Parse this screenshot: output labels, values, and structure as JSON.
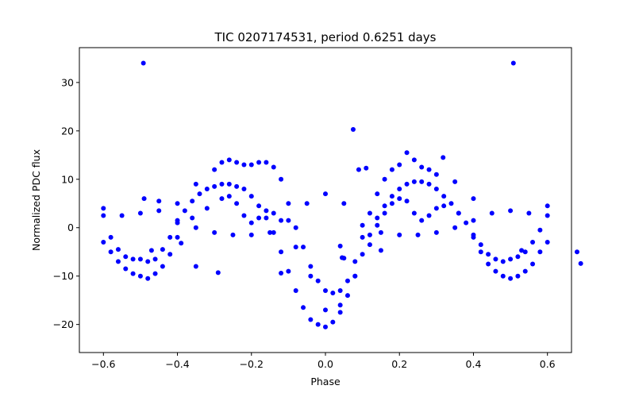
{
  "chart_data": {
    "type": "scatter",
    "title": "TIC 0207174531, period 0.6251 days",
    "xlabel": "Phase",
    "ylabel": "Normalized PDC flux",
    "xlim": [
      -0.665,
      0.665
    ],
    "ylim": [
      -25.8,
      37.2
    ],
    "xticks": [
      -0.6,
      -0.4,
      -0.2,
      0.0,
      0.2,
      0.4,
      0.6
    ],
    "xtick_labels": [
      "−0.6",
      "−0.4",
      "−0.2",
      "0.0",
      "0.2",
      "0.4",
      "0.6"
    ],
    "yticks": [
      -20,
      -10,
      0,
      10,
      20,
      30
    ],
    "ytick_labels": [
      "−20",
      "−10",
      "0",
      "10",
      "20",
      "30"
    ],
    "grid": false,
    "marker_color": "#0000ff",
    "outliers": [
      {
        "x": -0.492,
        "y": 34.0
      },
      {
        "x": 0.508,
        "y": 34.0
      },
      {
        "x": 0.075,
        "y": 20.3
      },
      {
        "x": 0.09,
        "y": 12.0
      },
      {
        "x": 0.11,
        "y": 12.3
      },
      {
        "x": 0.318,
        "y": 14.5
      },
      {
        "x": -0.29,
        "y": -9.3
      },
      {
        "x": -0.12,
        "y": -9.4
      },
      {
        "x": 0.04,
        "y": -3.8
      },
      {
        "x": 0.045,
        "y": -6.2
      },
      {
        "x": 0.05,
        "y": -6.3
      },
      {
        "x": -0.47,
        "y": -4.7
      },
      {
        "x": 0.53,
        "y": -4.7
      },
      {
        "x": -0.49,
        "y": 6.0
      },
      {
        "x": -0.45,
        "y": 5.5
      },
      {
        "x": -0.39,
        "y": -3.2
      },
      {
        "x": -0.35,
        "y": -8.0
      },
      {
        "x": 0.15,
        "y": -4.7
      },
      {
        "x": 0.69,
        "y": -7.4
      },
      {
        "x": 0.68,
        "y": -5.0
      }
    ],
    "series": [
      {
        "x": [
          -0.6,
          -0.58,
          -0.56,
          -0.54,
          -0.52,
          -0.5,
          -0.48,
          -0.46,
          -0.44,
          -0.42,
          -0.4,
          -0.38,
          -0.36,
          -0.34,
          -0.32,
          -0.3,
          -0.28,
          -0.26,
          -0.24,
          -0.22,
          -0.2,
          -0.18,
          -0.16,
          -0.14,
          -0.12,
          -0.1,
          -0.08,
          -0.06,
          -0.04,
          -0.02,
          0.0,
          0.02,
          0.04,
          0.06,
          0.08,
          0.1,
          0.12,
          0.14,
          0.16,
          0.18,
          0.2,
          0.22,
          0.24,
          0.26,
          0.28,
          0.3,
          0.32,
          0.34,
          0.36,
          0.38,
          0.4,
          0.42,
          0.44,
          0.46,
          0.48,
          0.5,
          0.52,
          0.54,
          0.56,
          0.58,
          0.6
        ],
        "y": [
          2.5,
          -2.0,
          -4.5,
          -6.0,
          -6.5,
          -6.5,
          -7.0,
          -6.5,
          -4.5,
          -2.0,
          1.0,
          3.5,
          5.5,
          7.0,
          8.0,
          8.5,
          9.0,
          9.0,
          8.5,
          8.0,
          6.5,
          4.5,
          2.0,
          -1.0,
          -5.0,
          -9.0,
          -13.0,
          -16.5,
          -19.0,
          -20.0,
          -20.5,
          -19.5,
          -17.5,
          -14.0,
          -10.0,
          -5.5,
          -1.5,
          2.0,
          4.5,
          6.5,
          8.0,
          9.0,
          9.5,
          9.5,
          9.0,
          8.0,
          6.5,
          5.0,
          3.0,
          1.0,
          -1.5,
          -3.5,
          -5.5,
          -6.5,
          -7.0,
          -6.5,
          -6.0,
          -5.0,
          -3.0,
          -0.5,
          2.5
        ]
      },
      {
        "x": [
          -0.6,
          -0.55,
          -0.5,
          -0.45,
          -0.4,
          -0.35,
          -0.3,
          -0.25,
          -0.2,
          -0.15,
          -0.1,
          -0.05,
          0.0,
          0.05,
          0.1,
          0.15,
          0.2,
          0.25,
          0.3,
          0.35,
          0.4,
          0.45,
          0.5,
          0.55,
          0.6
        ],
        "y": [
          4.0,
          2.5,
          3.0,
          3.5,
          1.5,
          0.0,
          -1.0,
          -1.5,
          -1.5,
          -1.0,
          1.5,
          5.0,
          7.0,
          5.0,
          0.5,
          -1.0,
          -1.5,
          -1.5,
          -1.0,
          0.0,
          1.5,
          3.0,
          3.5,
          3.0,
          4.5
        ]
      },
      {
        "x": [
          -0.4,
          -0.35,
          -0.3,
          -0.28,
          -0.26,
          -0.24,
          -0.22,
          -0.2,
          -0.18,
          -0.16,
          -0.14,
          -0.12,
          -0.1,
          -0.08,
          -0.06,
          -0.04,
          -0.02,
          0.0,
          0.02,
          0.04,
          0.06,
          0.08,
          0.1,
          0.12,
          0.14,
          0.16,
          0.18,
          0.2,
          0.22,
          0.24,
          0.26,
          0.28,
          0.3,
          0.35,
          0.4
        ],
        "y": [
          5.0,
          9.0,
          12.0,
          13.5,
          14.0,
          13.5,
          13.0,
          13.0,
          13.5,
          13.5,
          12.5,
          10.0,
          5.0,
          0.0,
          -4.0,
          -8.0,
          -11.0,
          -13.0,
          -13.5,
          -13.0,
          -11.0,
          -7.0,
          -2.0,
          3.0,
          7.0,
          10.0,
          12.0,
          13.0,
          15.5,
          14.0,
          12.5,
          12.0,
          11.0,
          9.5,
          6.0
        ]
      },
      {
        "x": [
          -0.36,
          -0.32,
          -0.28,
          -0.26,
          -0.24,
          -0.22,
          -0.2,
          -0.18,
          -0.16,
          -0.14,
          -0.12,
          -0.08,
          -0.04,
          0.0,
          0.04,
          0.08,
          0.12,
          0.14,
          0.16,
          0.18,
          0.2,
          0.22,
          0.24,
          0.26,
          0.28,
          0.3,
          0.32,
          0.36
        ],
        "y": [
          2.0,
          4.0,
          6.0,
          6.5,
          5.0,
          2.5,
          1.0,
          2.0,
          3.5,
          3.0,
          1.5,
          -4.0,
          -10.0,
          -17.0,
          -16.0,
          -10.0,
          -3.5,
          0.5,
          3.0,
          5.0,
          6.0,
          5.5,
          3.0,
          1.5,
          2.5,
          4.0,
          4.5,
          3.0
        ]
      },
      {
        "x": [
          -0.6,
          -0.58,
          -0.56,
          -0.54,
          -0.52,
          -0.5,
          -0.48,
          -0.46,
          -0.44,
          -0.42,
          -0.4
        ],
        "y": [
          -3.0,
          -5.0,
          -7.0,
          -8.5,
          -9.5,
          -10.0,
          -10.5,
          -9.5,
          -8.0,
          -5.5,
          -2.0
        ]
      },
      {
        "x": [
          0.4,
          0.42,
          0.44,
          0.46,
          0.48,
          0.5,
          0.52,
          0.54,
          0.56,
          0.58,
          0.6
        ],
        "y": [
          -2.0,
          -5.0,
          -7.5,
          -9.0,
          -10.0,
          -10.5,
          -10.0,
          -9.0,
          -7.5,
          -5.0,
          -3.0
        ]
      }
    ]
  }
}
